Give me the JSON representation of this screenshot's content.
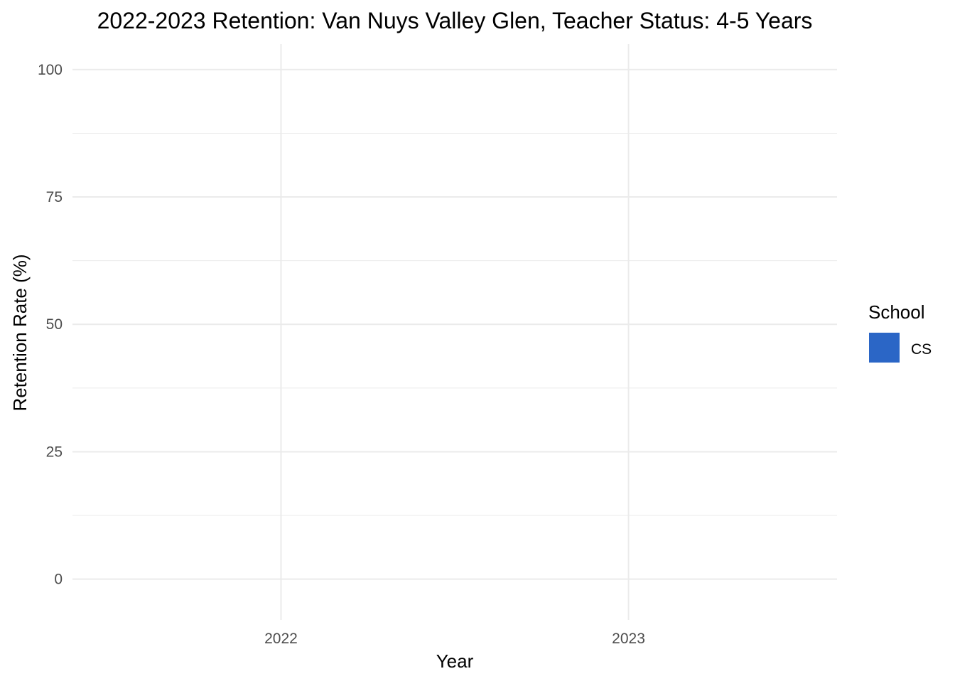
{
  "chart_data": {
    "type": "bar",
    "title": "2022-2023 Retention: Van Nuys Valley Glen, Teacher Status: 4-5 Years",
    "xlabel": "Year",
    "ylabel": "Retention Rate (%)",
    "categories": [
      "2022",
      "2023"
    ],
    "ylim": [
      -8,
      105
    ],
    "y_major_ticks": [
      0,
      25,
      50,
      75,
      100
    ],
    "y_minor_ticks": [
      12.5,
      37.5,
      62.5,
      87.5
    ],
    "y_tick_labels": [
      "0",
      "25",
      "50",
      "75",
      "100"
    ],
    "grid": true,
    "series": [
      {
        "name": "CS",
        "values": [
          null,
          null
        ],
        "color": "#2b66c6"
      }
    ],
    "legend": {
      "title": "School",
      "placement": "right",
      "items": [
        {
          "label": "CS",
          "color": "#2b66c6"
        }
      ]
    }
  }
}
